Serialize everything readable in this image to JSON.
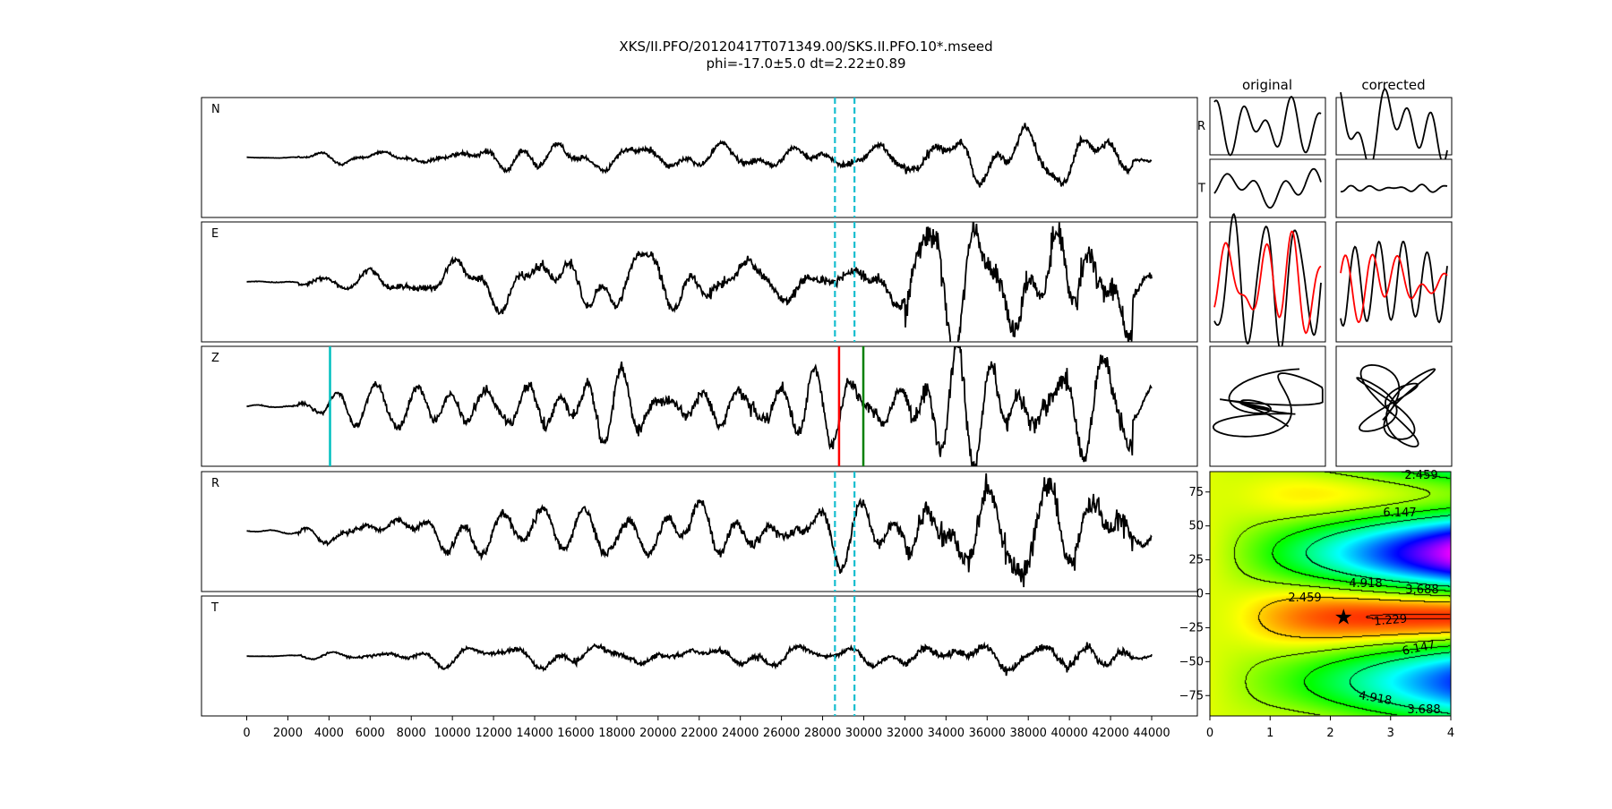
{
  "chart_data": {
    "type": "line",
    "title": "XKS/II.PFO/20120417T071349.00/SKS.II.PFO.10*.mseed",
    "subtitle": "phi=-17.0±5.0 dt=2.22±0.89",
    "traces": [
      "N",
      "E",
      "Z",
      "R",
      "T"
    ],
    "x_range": [
      0,
      44000
    ],
    "x_ticks": [
      "0",
      "2000",
      "4000",
      "6000",
      "8000",
      "10000",
      "12000",
      "14000",
      "16000",
      "18000",
      "20000",
      "22000",
      "24000",
      "26000",
      "28000",
      "30000",
      "32000",
      "34000",
      "36000",
      "38000",
      "40000",
      "42000",
      "44000"
    ],
    "window_markers": {
      "start": 28600,
      "end": 29550,
      "color": "#17becf",
      "style": "dashed",
      "panels": [
        "N",
        "E",
        "R",
        "T"
      ]
    },
    "z_markers": [
      {
        "x": 4050,
        "color": "#00bfbf"
      },
      {
        "x": 28800,
        "color": "#ff0000"
      },
      {
        "x": 29980,
        "color": "#008000"
      }
    ],
    "columns": [
      "original",
      "corrected"
    ],
    "small_row_labels": [
      "R",
      "T"
    ],
    "particle_colors": {
      "primary": "#000000",
      "secondary": "#ff0000"
    },
    "grid_search": {
      "type": "heatmap",
      "x_range": [
        0,
        4
      ],
      "y_range": [
        -90,
        90
      ],
      "x_ticks": [
        "0",
        "1",
        "2",
        "3",
        "4"
      ],
      "y_ticks": [
        "75",
        "50",
        "25",
        "0",
        "−25",
        "−50",
        "−75"
      ],
      "contour_levels": [
        "1.229",
        "2.459",
        "3.688",
        "4.918",
        "6.147"
      ],
      "best": {
        "dt": 2.22,
        "phi": -17.0
      }
    }
  }
}
